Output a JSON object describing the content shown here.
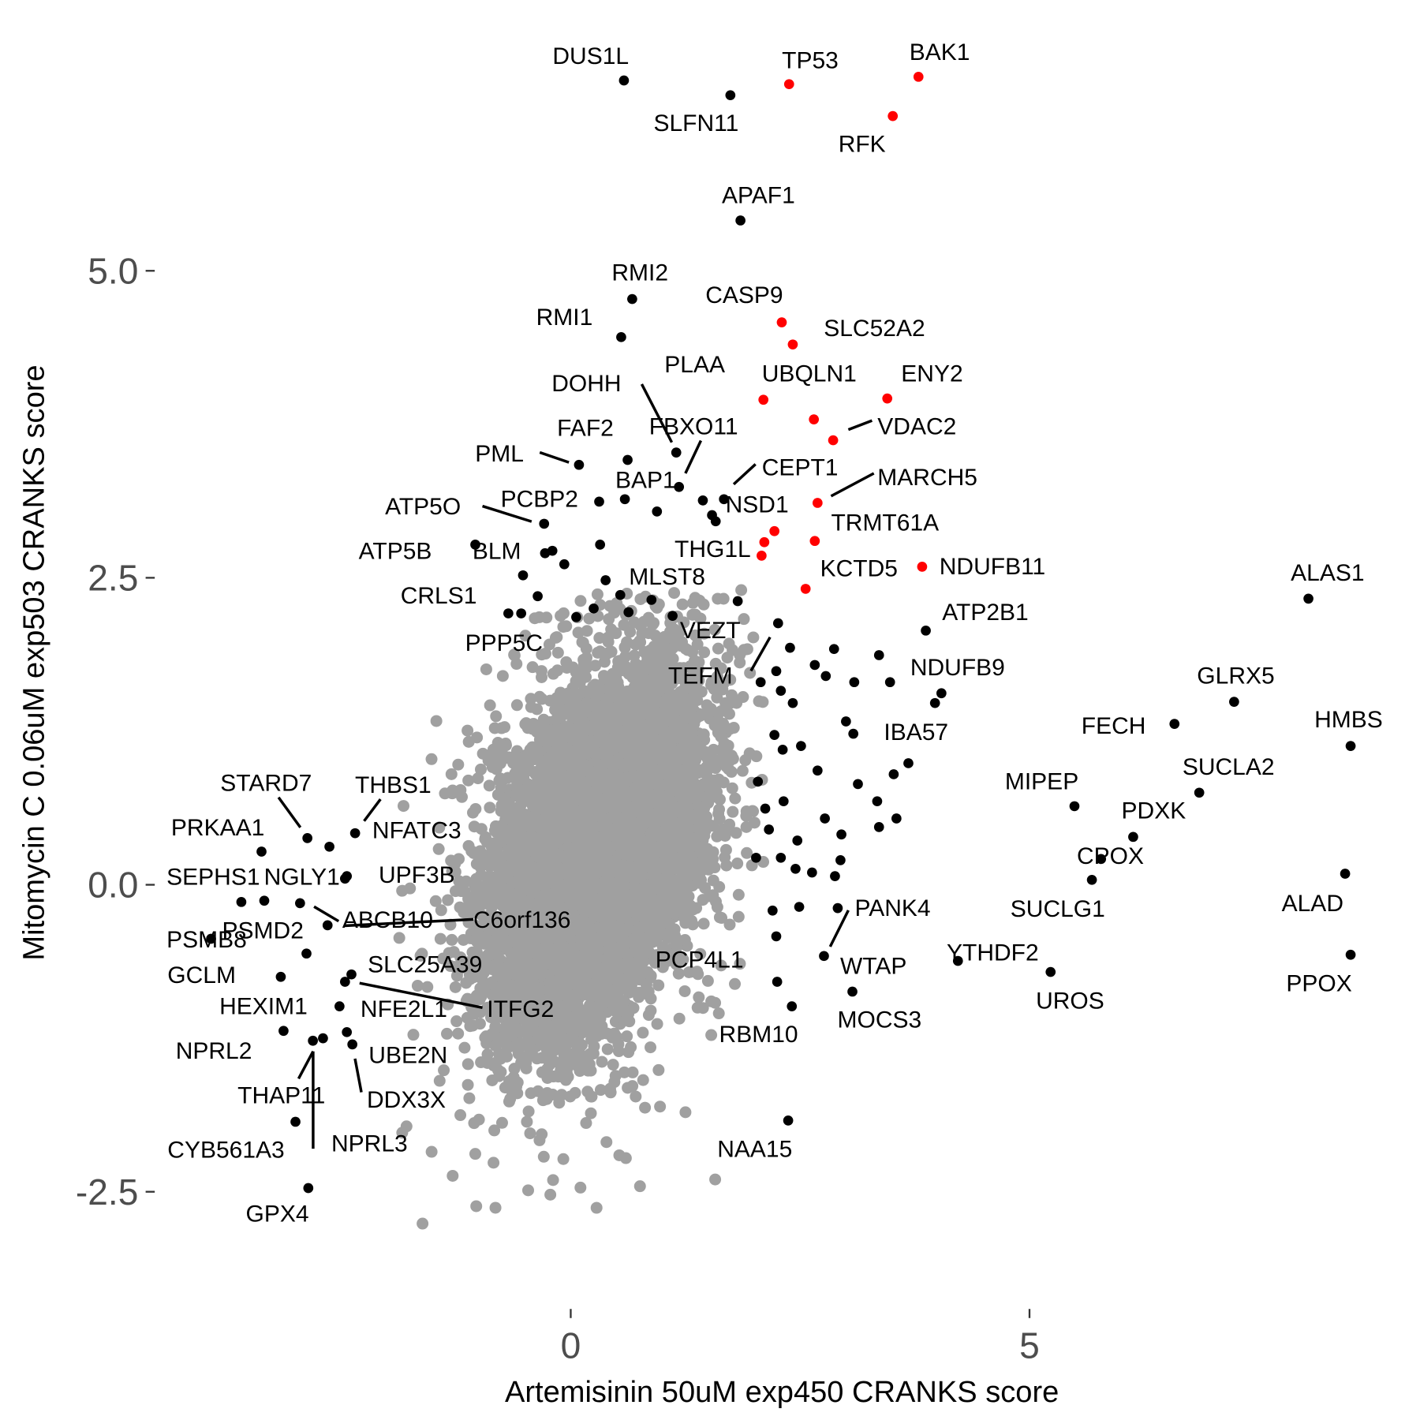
{
  "chart_data": {
    "type": "scatter",
    "xlabel": "Artemisinin 50uM exp450 CRANKS score",
    "ylabel": "Mitomycin C 0.06uM exp503 CRANKS score",
    "xlim": [
      -3.97,
      9.3
    ],
    "ylim": [
      -2.98,
      7.1
    ],
    "x_ticks": [
      "0",
      "5"
    ],
    "x_tick_values": [
      0,
      5
    ],
    "y_ticks": [
      "-2.5",
      "0.0",
      "2.5",
      "5.0"
    ],
    "y_tick_values": [
      -2.5,
      0,
      2.5,
      5
    ],
    "grid": false,
    "colors": {
      "background_genes": "#a0a0a0",
      "highlight": "#000000",
      "red_group": "#ff0000"
    },
    "background_cloud": {
      "n": 8000,
      "mean_x": 0.3,
      "mean_y": 0.3,
      "sd_x": 0.55,
      "sd_y": 0.72,
      "correlation": 0.4,
      "color": "#a0a0a0"
    },
    "points": [
      {
        "label": "TP53",
        "x": 2.38,
        "y": 6.52,
        "color": "#ff0000"
      },
      {
        "label": "BAK1",
        "x": 3.79,
        "y": 6.58,
        "color": "#ff0000"
      },
      {
        "label": "RFK",
        "x": 3.51,
        "y": 6.26,
        "color": "#ff0000"
      },
      {
        "label": "CASP9",
        "x": 2.3,
        "y": 4.58,
        "color": "#ff0000"
      },
      {
        "label": "SLC52A2",
        "x": 2.42,
        "y": 4.4,
        "color": "#ff0000"
      },
      {
        "label": "ENY2",
        "x": 3.45,
        "y": 3.96,
        "color": "#ff0000"
      },
      {
        "label": "UBQLN1",
        "x": 2.1,
        "y": 3.95,
        "color": "#ff0000"
      },
      {
        "label": "PLAA",
        "x": 2.65,
        "y": 3.79,
        "color": "#ff0000"
      },
      {
        "label": "VDAC2",
        "x": 2.86,
        "y": 3.62,
        "color": "#ff0000"
      },
      {
        "label": "MARCH5",
        "x": 2.69,
        "y": 3.11,
        "color": "#ff0000"
      },
      {
        "label": "TRMT61A",
        "x": 2.66,
        "y": 2.8,
        "color": "#ff0000"
      },
      {
        "label": "THG1L",
        "x": 2.08,
        "y": 2.68,
        "color": "#ff0000"
      },
      {
        "label": "",
        "x": 2.22,
        "y": 2.88,
        "color": "#ff0000"
      },
      {
        "label": "",
        "x": 2.11,
        "y": 2.79,
        "color": "#ff0000"
      },
      {
        "label": "KCTD5",
        "x": 2.56,
        "y": 2.41,
        "color": "#ff0000"
      },
      {
        "label": "NDUFB11",
        "x": 3.83,
        "y": 2.59,
        "color": "#ff0000"
      },
      {
        "label": "DUS1L",
        "x": 0.58,
        "y": 6.55,
        "color": "#000000"
      },
      {
        "label": "SLFN11",
        "x": 1.74,
        "y": 6.43,
        "color": "#000000"
      },
      {
        "label": "APAF1",
        "x": 1.85,
        "y": 5.41,
        "color": "#000000"
      },
      {
        "label": "RMI2",
        "x": 0.67,
        "y": 4.77,
        "color": "#000000"
      },
      {
        "label": "RMI1",
        "x": 0.55,
        "y": 4.46,
        "color": "#000000"
      },
      {
        "label": "FAF2",
        "x": 0.62,
        "y": 3.46,
        "color": "#000000"
      },
      {
        "label": "PML",
        "x": 0.09,
        "y": 3.42,
        "color": "#000000"
      },
      {
        "label": "DOHH",
        "x": 1.15,
        "y": 3.52,
        "color": "#000000"
      },
      {
        "label": "FBXO11",
        "x": 1.18,
        "y": 3.24,
        "color": "#000000"
      },
      {
        "label": "BAP1",
        "x": 0.59,
        "y": 3.14,
        "color": "#000000"
      },
      {
        "label": "PCBP2",
        "x": 0.31,
        "y": 3.12,
        "color": "#000000"
      },
      {
        "label": "ATP5O",
        "x": -0.29,
        "y": 2.94,
        "color": "#000000"
      },
      {
        "label": "CEPT1",
        "x": 1.67,
        "y": 3.14,
        "color": "#000000"
      },
      {
        "label": "NSD1",
        "x": 1.54,
        "y": 3.01,
        "color": "#000000"
      },
      {
        "label": "ATP5B",
        "x": -1.04,
        "y": 2.77,
        "color": "#000000"
      },
      {
        "label": "BLM",
        "x": -0.28,
        "y": 2.7,
        "color": "#000000"
      },
      {
        "label": "CRLS1",
        "x": -0.52,
        "y": 2.52,
        "color": "#000000"
      },
      {
        "label": "MLST8",
        "x": 0.38,
        "y": 2.48,
        "color": "#000000"
      },
      {
        "label": "PPP5C",
        "x": -0.68,
        "y": 2.21,
        "color": "#000000"
      },
      {
        "label": "ALAS1",
        "x": 8.04,
        "y": 2.33,
        "color": "#000000"
      },
      {
        "label": "ATP2B1",
        "x": 3.87,
        "y": 2.07,
        "color": "#000000"
      },
      {
        "label": "VEZT",
        "x": 2.26,
        "y": 2.13,
        "color": "#000000"
      },
      {
        "label": "TEFM",
        "x": 2.07,
        "y": 1.65,
        "color": "#000000"
      },
      {
        "label": "NDUFB9",
        "x": 4.04,
        "y": 1.56,
        "color": "#000000"
      },
      {
        "label": "GLRX5",
        "x": 7.23,
        "y": 1.49,
        "color": "#000000"
      },
      {
        "label": "FECH",
        "x": 6.58,
        "y": 1.31,
        "color": "#000000"
      },
      {
        "label": "HMBS",
        "x": 8.5,
        "y": 1.13,
        "color": "#000000"
      },
      {
        "label": "IBA57",
        "x": 3.68,
        "y": 0.99,
        "color": "#000000"
      },
      {
        "label": "SUCLA2",
        "x": 6.85,
        "y": 0.75,
        "color": "#000000"
      },
      {
        "label": "MIPEP",
        "x": 5.49,
        "y": 0.64,
        "color": "#000000"
      },
      {
        "label": "PDXK",
        "x": 6.13,
        "y": 0.39,
        "color": "#000000"
      },
      {
        "label": "CPOX",
        "x": 5.78,
        "y": 0.21,
        "color": "#000000"
      },
      {
        "label": "ALAD",
        "x": 8.44,
        "y": 0.09,
        "color": "#000000"
      },
      {
        "label": "SUCLG1",
        "x": 5.68,
        "y": 0.04,
        "color": "#000000"
      },
      {
        "label": "PPOX",
        "x": 8.5,
        "y": -0.57,
        "color": "#000000"
      },
      {
        "label": "UROS",
        "x": 5.23,
        "y": -0.71,
        "color": "#000000"
      },
      {
        "label": "YTHDF2",
        "x": 4.22,
        "y": -0.62,
        "color": "#000000"
      },
      {
        "label": "PANK4",
        "x": 2.91,
        "y": -0.19,
        "color": "#000000"
      },
      {
        "label": "WTAP",
        "x": 2.76,
        "y": -0.58,
        "color": "#000000"
      },
      {
        "label": "MOCS3",
        "x": 3.07,
        "y": -0.87,
        "color": "#000000"
      },
      {
        "label": "PCP4L1",
        "x": 2.25,
        "y": -0.79,
        "color": "#000000"
      },
      {
        "label": "RBM10",
        "x": 2.41,
        "y": -0.99,
        "color": "#000000"
      },
      {
        "label": "NAA15",
        "x": 2.37,
        "y": -1.92,
        "color": "#000000"
      },
      {
        "label": "STARD7",
        "x": -2.87,
        "y": 0.38,
        "color": "#000000"
      },
      {
        "label": "THBS1",
        "x": -2.35,
        "y": 0.42,
        "color": "#000000"
      },
      {
        "label": "NFATC3",
        "x": -2.63,
        "y": 0.31,
        "color": "#000000"
      },
      {
        "label": "PRKAA1",
        "x": -3.37,
        "y": 0.27,
        "color": "#000000"
      },
      {
        "label": "SEPHS1",
        "x": -3.59,
        "y": -0.14,
        "color": "#000000"
      },
      {
        "label": "NGLY1",
        "x": -2.44,
        "y": 0.07,
        "color": "#000000"
      },
      {
        "label": "UPF3B",
        "x": -2.46,
        "y": 0.05,
        "color": "#000000"
      },
      {
        "label": "PSMB8",
        "x": -3.92,
        "y": -0.44,
        "color": "#000000"
      },
      {
        "label": "PSMD2",
        "x": -3.34,
        "y": -0.13,
        "color": "#000000"
      },
      {
        "label": "ABCB10",
        "x": -2.95,
        "y": -0.15,
        "color": "#000000"
      },
      {
        "label": "C6orf136",
        "x": -2.65,
        "y": -0.33,
        "color": "#000000"
      },
      {
        "label": "GCLM",
        "x": -3.16,
        "y": -0.75,
        "color": "#000000"
      },
      {
        "label": "SLC25A39",
        "x": -2.88,
        "y": -0.56,
        "color": "#000000"
      },
      {
        "label": "HEXIM1",
        "x": -2.52,
        "y": -0.99,
        "color": "#000000"
      },
      {
        "label": "ITFG2",
        "x": -2.46,
        "y": -0.79,
        "color": "#000000"
      },
      {
        "label": "NFE2L1",
        "x": -2.39,
        "y": -0.73,
        "color": "#000000"
      },
      {
        "label": "NPRL2",
        "x": -3.13,
        "y": -1.19,
        "color": "#000000"
      },
      {
        "label": "THAP11",
        "x": -2.81,
        "y": -1.27,
        "color": "#000000"
      },
      {
        "label": "NPRL3",
        "x": -2.7,
        "y": -1.25,
        "color": "#000000"
      },
      {
        "label": "UBE2N",
        "x": -2.44,
        "y": -1.2,
        "color": "#000000"
      },
      {
        "label": "DDX3X",
        "x": -2.38,
        "y": -1.3,
        "color": "#000000"
      },
      {
        "label": "CYB561A3",
        "x": -3.0,
        "y": -1.93,
        "color": "#000000"
      },
      {
        "label": "GPX4",
        "x": -2.86,
        "y": -2.47,
        "color": "#000000"
      },
      {
        "label": "",
        "x": 1.44,
        "y": 3.13,
        "color": "#000000"
      },
      {
        "label": "",
        "x": 1.58,
        "y": 2.96,
        "color": "#000000"
      },
      {
        "label": "",
        "x": 0.94,
        "y": 3.04,
        "color": "#000000"
      },
      {
        "label": "",
        "x": 0.32,
        "y": 2.77,
        "color": "#000000"
      },
      {
        "label": "",
        "x": -0.2,
        "y": 2.72,
        "color": "#000000"
      },
      {
        "label": "",
        "x": -0.07,
        "y": 2.61,
        "color": "#000000"
      },
      {
        "label": "",
        "x": -0.36,
        "y": 2.35,
        "color": "#000000"
      },
      {
        "label": "",
        "x": -0.54,
        "y": 2.21,
        "color": "#000000"
      },
      {
        "label": "",
        "x": 0.06,
        "y": 2.18,
        "color": "#000000"
      },
      {
        "label": "",
        "x": 0.25,
        "y": 2.25,
        "color": "#000000"
      },
      {
        "label": "",
        "x": 0.54,
        "y": 2.36,
        "color": "#000000"
      },
      {
        "label": "",
        "x": 0.63,
        "y": 2.22,
        "color": "#000000"
      },
      {
        "label": "",
        "x": 0.88,
        "y": 2.32,
        "color": "#000000"
      },
      {
        "label": "",
        "x": 1.11,
        "y": 2.19,
        "color": "#000000"
      },
      {
        "label": "",
        "x": 1.82,
        "y": 2.31,
        "color": "#000000"
      },
      {
        "label": "",
        "x": 2.39,
        "y": 1.93,
        "color": "#000000"
      },
      {
        "label": "",
        "x": 2.66,
        "y": 1.79,
        "color": "#000000"
      },
      {
        "label": "",
        "x": 2.87,
        "y": 1.92,
        "color": "#000000"
      },
      {
        "label": "",
        "x": 2.78,
        "y": 1.7,
        "color": "#000000"
      },
      {
        "label": "",
        "x": 3.09,
        "y": 1.65,
        "color": "#000000"
      },
      {
        "label": "",
        "x": 3.36,
        "y": 1.87,
        "color": "#000000"
      },
      {
        "label": "",
        "x": 3.48,
        "y": 1.65,
        "color": "#000000"
      },
      {
        "label": "",
        "x": 3.97,
        "y": 1.48,
        "color": "#000000"
      },
      {
        "label": "",
        "x": 2.24,
        "y": 1.74,
        "color": "#000000"
      },
      {
        "label": "",
        "x": 2.29,
        "y": 1.58,
        "color": "#000000"
      },
      {
        "label": "",
        "x": 2.42,
        "y": 1.48,
        "color": "#000000"
      },
      {
        "label": "",
        "x": 2.22,
        "y": 1.22,
        "color": "#000000"
      },
      {
        "label": "",
        "x": 2.31,
        "y": 1.1,
        "color": "#000000"
      },
      {
        "label": "",
        "x": 2.51,
        "y": 1.13,
        "color": "#000000"
      },
      {
        "label": "",
        "x": 2.69,
        "y": 0.93,
        "color": "#000000"
      },
      {
        "label": "",
        "x": 3.0,
        "y": 1.33,
        "color": "#000000"
      },
      {
        "label": "",
        "x": 3.08,
        "y": 1.23,
        "color": "#000000"
      },
      {
        "label": "",
        "x": 3.13,
        "y": 0.82,
        "color": "#000000"
      },
      {
        "label": "",
        "x": 3.52,
        "y": 0.9,
        "color": "#000000"
      },
      {
        "label": "",
        "x": 2.04,
        "y": 0.84,
        "color": "#000000"
      },
      {
        "label": "",
        "x": 2.12,
        "y": 0.62,
        "color": "#000000"
      },
      {
        "label": "",
        "x": 2.32,
        "y": 0.68,
        "color": "#000000"
      },
      {
        "label": "",
        "x": 2.16,
        "y": 0.45,
        "color": "#000000"
      },
      {
        "label": "",
        "x": 2.47,
        "y": 0.36,
        "color": "#000000"
      },
      {
        "label": "",
        "x": 2.77,
        "y": 0.54,
        "color": "#000000"
      },
      {
        "label": "",
        "x": 2.95,
        "y": 0.41,
        "color": "#000000"
      },
      {
        "label": "",
        "x": 3.34,
        "y": 0.68,
        "color": "#000000"
      },
      {
        "label": "",
        "x": 3.55,
        "y": 0.54,
        "color": "#000000"
      },
      {
        "label": "",
        "x": 3.36,
        "y": 0.47,
        "color": "#000000"
      },
      {
        "label": "",
        "x": 2.02,
        "y": 0.22,
        "color": "#000000"
      },
      {
        "label": "",
        "x": 2.29,
        "y": 0.22,
        "color": "#000000"
      },
      {
        "label": "",
        "x": 2.45,
        "y": 0.13,
        "color": "#000000"
      },
      {
        "label": "",
        "x": 2.63,
        "y": 0.1,
        "color": "#000000"
      },
      {
        "label": "",
        "x": 2.88,
        "y": 0.07,
        "color": "#000000"
      },
      {
        "label": "",
        "x": 2.94,
        "y": 0.2,
        "color": "#000000"
      },
      {
        "label": "",
        "x": 2.2,
        "y": -0.21,
        "color": "#000000"
      },
      {
        "label": "",
        "x": 2.49,
        "y": -0.18,
        "color": "#000000"
      },
      {
        "label": "",
        "x": 2.24,
        "y": -0.42,
        "color": "#000000"
      }
    ]
  }
}
